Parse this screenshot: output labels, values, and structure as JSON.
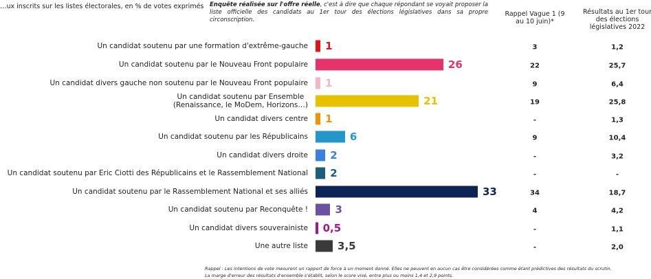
{
  "header": {
    "subtitle": "…ux inscrits sur les listes électorales, en % de votes exprimés",
    "note_bold": "Enquête réalisée sur l'offre réelle",
    "note": ", c'est à dire que chaque répondant se voyait proposer la liste officielle des candidats au 1er tour des élections législatives dans sa propre circonscription.",
    "col1": "Rappel Vague 1 (9 au 10 juin)*",
    "col2": "Résultats au 1er tour des élections législatives 2022"
  },
  "chart_data": {
    "type": "bar",
    "orientation": "horizontal",
    "categories": [
      "Un candidat soutenu par une formation d'extrême-gauche",
      "Un candidat soutenu par le Nouveau Front populaire",
      "Un candidat divers gauche non soutenu par le Nouveau Front populaire",
      "Un candidat soutenu par Ensemble (Renaissance, le MoDem, Horizons…)",
      "Un candidat divers centre",
      "Un candidat soutenu par les Républicains",
      "Un candidat divers droite",
      "Un candidat soutenu par Eric Ciotti des Républicains et le Rassemblement National",
      "Un candidat soutenu par le Rassemblement National et ses alliés",
      "Un candidat soutenu par Reconquête !",
      "Un candidat divers souverainiste",
      "Une autre liste"
    ],
    "values": [
      1,
      26,
      1,
      21,
      1,
      6,
      2,
      2,
      33,
      3,
      0.5,
      3.5
    ],
    "value_labels": [
      "1",
      "26",
      "1",
      "21",
      "1",
      "6",
      "2",
      "2",
      "33",
      "3",
      "0,5",
      "3,5"
    ],
    "colors": [
      "#e3131b",
      "#e5336b",
      "#f5b5c4",
      "#e6c100",
      "#f39200",
      "#2596c9",
      "#3b7fe0",
      "#1b5d7b",
      "#0f2456",
      "#6b51a1",
      "#a3168c",
      "#3a3a3a"
    ],
    "rappel_vague1": [
      "3",
      "22",
      "9",
      "19",
      "-",
      "9",
      "-",
      "-",
      "34",
      "4",
      "-",
      "-"
    ],
    "resultats_2022": [
      "1,2",
      "25,7",
      "6,4",
      "25,8",
      "1,3",
      "10,4",
      "3,2",
      "-",
      "18,7",
      "4,2",
      "1,1",
      "2,0"
    ]
  },
  "footer": {
    "line1": "Rappel : Les intentions de vote mesurent un rapport de force à un moment donné. Elles ne peuvent en aucun cas être considérées comme étant prédictives des résultats du scrutin.",
    "line2": "La marge d'erreur des résultats d'ensemble s'établit, selon le score visé, entre plus ou moins 1,4 et 2,9 points."
  }
}
